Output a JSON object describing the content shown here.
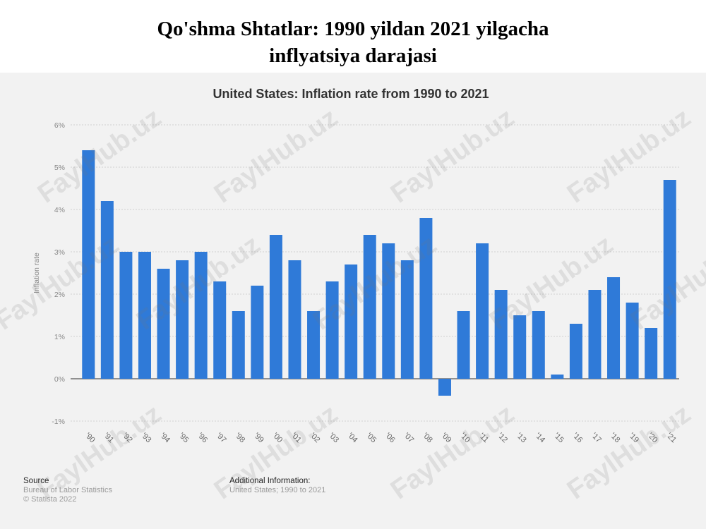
{
  "page_title": {
    "line1": "Qo'shma Shtatlar: 1990 yildan 2021 yilgacha",
    "line2": "inflyatsiya darajasi"
  },
  "chart_data": {
    "type": "bar",
    "title": "United States: Inflation rate from 1990 to 2021",
    "xlabel": "",
    "ylabel": "Inflation rate",
    "categories": [
      "'90",
      "'91",
      "'92",
      "'93",
      "'94",
      "'95",
      "'96",
      "'97",
      "'98",
      "'99",
      "'00",
      "'01",
      "'02",
      "'03",
      "'04",
      "'05",
      "'06",
      "'07",
      "'08",
      "'09",
      "'10",
      "'11",
      "'12",
      "'13",
      "'14",
      "'15",
      "'16",
      "'17",
      "'18",
      "'19",
      "'20",
      "'21"
    ],
    "series": [
      {
        "values": [
          5.4,
          4.2,
          3.0,
          3.0,
          2.6,
          2.8,
          3.0,
          2.3,
          1.6,
          2.2,
          3.4,
          2.8,
          1.6,
          2.3,
          2.7,
          3.4,
          3.2,
          2.8,
          3.8,
          -0.4,
          1.6,
          3.2,
          2.1,
          1.5,
          1.6,
          0.1,
          1.3,
          2.1,
          2.4,
          1.8,
          1.2,
          4.7
        ]
      }
    ],
    "ylim": [
      -1,
      6
    ],
    "yticks": [
      -1,
      0,
      1,
      2,
      3,
      4,
      5,
      6
    ],
    "ytick_labels": [
      "-1%",
      "0%",
      "1%",
      "2%",
      "3%",
      "4%",
      "5%",
      "6%"
    ],
    "grid": true,
    "legend": "none",
    "bar_color": "#2f7ad8"
  },
  "footer": {
    "source_head": "Source",
    "source_line1": "Bureau of Labor Statistics",
    "source_line2": "© Statista 2022",
    "info_head": "Additional Information:",
    "info_line1": "United States; 1990 to 2021"
  },
  "watermark_text": "FaylHub.uz"
}
